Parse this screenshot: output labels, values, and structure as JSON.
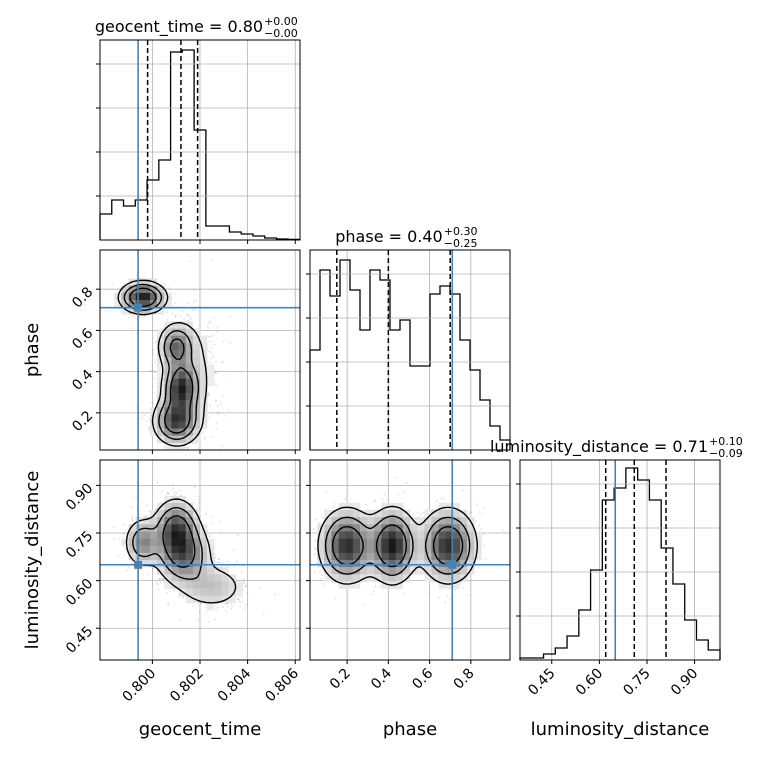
{
  "chart_data": {
    "type": "corner",
    "parameters": [
      "geocent_time",
      "phase",
      "luminosity_distance"
    ],
    "axis_labels": [
      "geocent_time",
      "phase",
      "luminosity_distance"
    ],
    "titles": [
      {
        "prefix": "geocent_time = ",
        "value": "0.80",
        "plus": "+0.00",
        "minus": "−0.00"
      },
      {
        "prefix": "phase = ",
        "value": "0.40",
        "plus": "+0.30",
        "minus": "−0.25"
      },
      {
        "prefix": "luminosity_distance = ",
        "value": "0.71",
        "plus": "+0.10",
        "minus": "−0.09"
      }
    ],
    "ranges": [
      [
        0.7978,
        0.8062
      ],
      [
        0.02,
        0.99
      ],
      [
        0.35,
        0.98
      ]
    ],
    "ticks": [
      {
        "values": [
          0.8,
          0.802,
          0.804,
          0.806
        ],
        "labels": [
          "0.800",
          "0.802",
          "0.804",
          "0.806"
        ]
      },
      {
        "values": [
          0.2,
          0.4,
          0.6,
          0.8
        ],
        "labels": [
          "0.2",
          "0.4",
          "0.6",
          "0.8"
        ]
      },
      {
        "values": [
          0.45,
          0.6,
          0.75,
          0.9
        ],
        "labels": [
          "0.45",
          "0.60",
          "0.75",
          "0.90"
        ]
      }
    ],
    "truths": [
      0.7994,
      0.71,
      0.65
    ],
    "quantiles": [
      [
        0.7998,
        0.8012,
        0.8019
      ],
      [
        0.15,
        0.4,
        0.7
      ],
      [
        0.62,
        0.71,
        0.81
      ]
    ],
    "histograms": [
      [
        0.13,
        0.2,
        0.17,
        0.2,
        0.3,
        0.4,
        0.94,
        0.95,
        0.55,
        0.07,
        0.07,
        0.04,
        0.03,
        0.02,
        0.01,
        0.005,
        0.003
      ],
      [
        0.5,
        0.9,
        0.77,
        0.95,
        0.8,
        0.6,
        0.9,
        0.85,
        0.6,
        0.65,
        0.42,
        0.42,
        0.78,
        0.82,
        0.78,
        0.55,
        0.4,
        0.25,
        0.12,
        0.05
      ],
      [
        0.01,
        0.01,
        0.03,
        0.06,
        0.12,
        0.25,
        0.45,
        0.8,
        0.86,
        0.96,
        0.9,
        0.8,
        0.56,
        0.38,
        0.2,
        0.1,
        0.05
      ]
    ],
    "grid": true,
    "truth_color": "#4682b4",
    "hist_color": "#000000"
  }
}
